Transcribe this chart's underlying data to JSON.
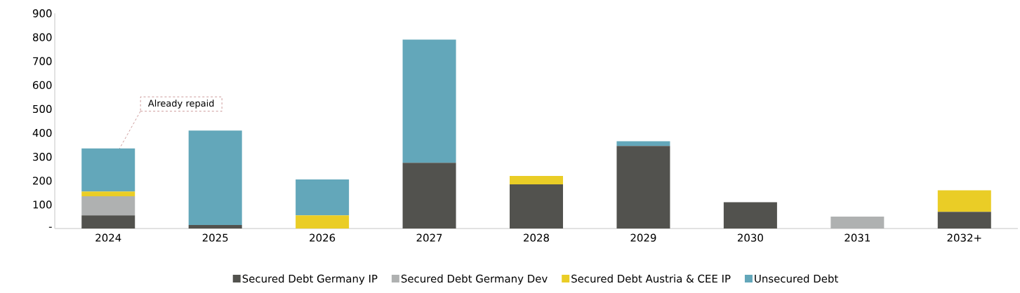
{
  "chart_data": {
    "type": "bar",
    "stacked": true,
    "categories": [
      "2024",
      "2025",
      "2026",
      "2027",
      "2028",
      "2029",
      "2030",
      "2031",
      "2032+"
    ],
    "series": [
      {
        "name": "Secured Debt Germany IP",
        "color": "#52524e",
        "values": [
          55,
          15,
          0,
          275,
          185,
          345,
          110,
          0,
          70
        ]
      },
      {
        "name": "Secured Debt Germany Dev",
        "color": "#afb1b1",
        "values": [
          80,
          0,
          0,
          0,
          0,
          0,
          0,
          50,
          0
        ]
      },
      {
        "name": "Secured Debt Austria & CEE IP",
        "color": "#eacd26",
        "values": [
          20,
          0,
          55,
          0,
          35,
          0,
          0,
          0,
          90
        ]
      },
      {
        "name": "Unsecured Debt",
        "color": "#63a7ba",
        "values": [
          180,
          395,
          150,
          515,
          0,
          20,
          0,
          0,
          0
        ]
      }
    ],
    "ylim": [
      0,
      900
    ],
    "yticks": [
      {
        "value": 0,
        "label": "-"
      },
      100,
      200,
      300,
      400,
      500,
      600,
      700,
      800,
      900
    ],
    "grid": false,
    "legend": "bottom",
    "annotations": [
      "Already repaid"
    ]
  }
}
